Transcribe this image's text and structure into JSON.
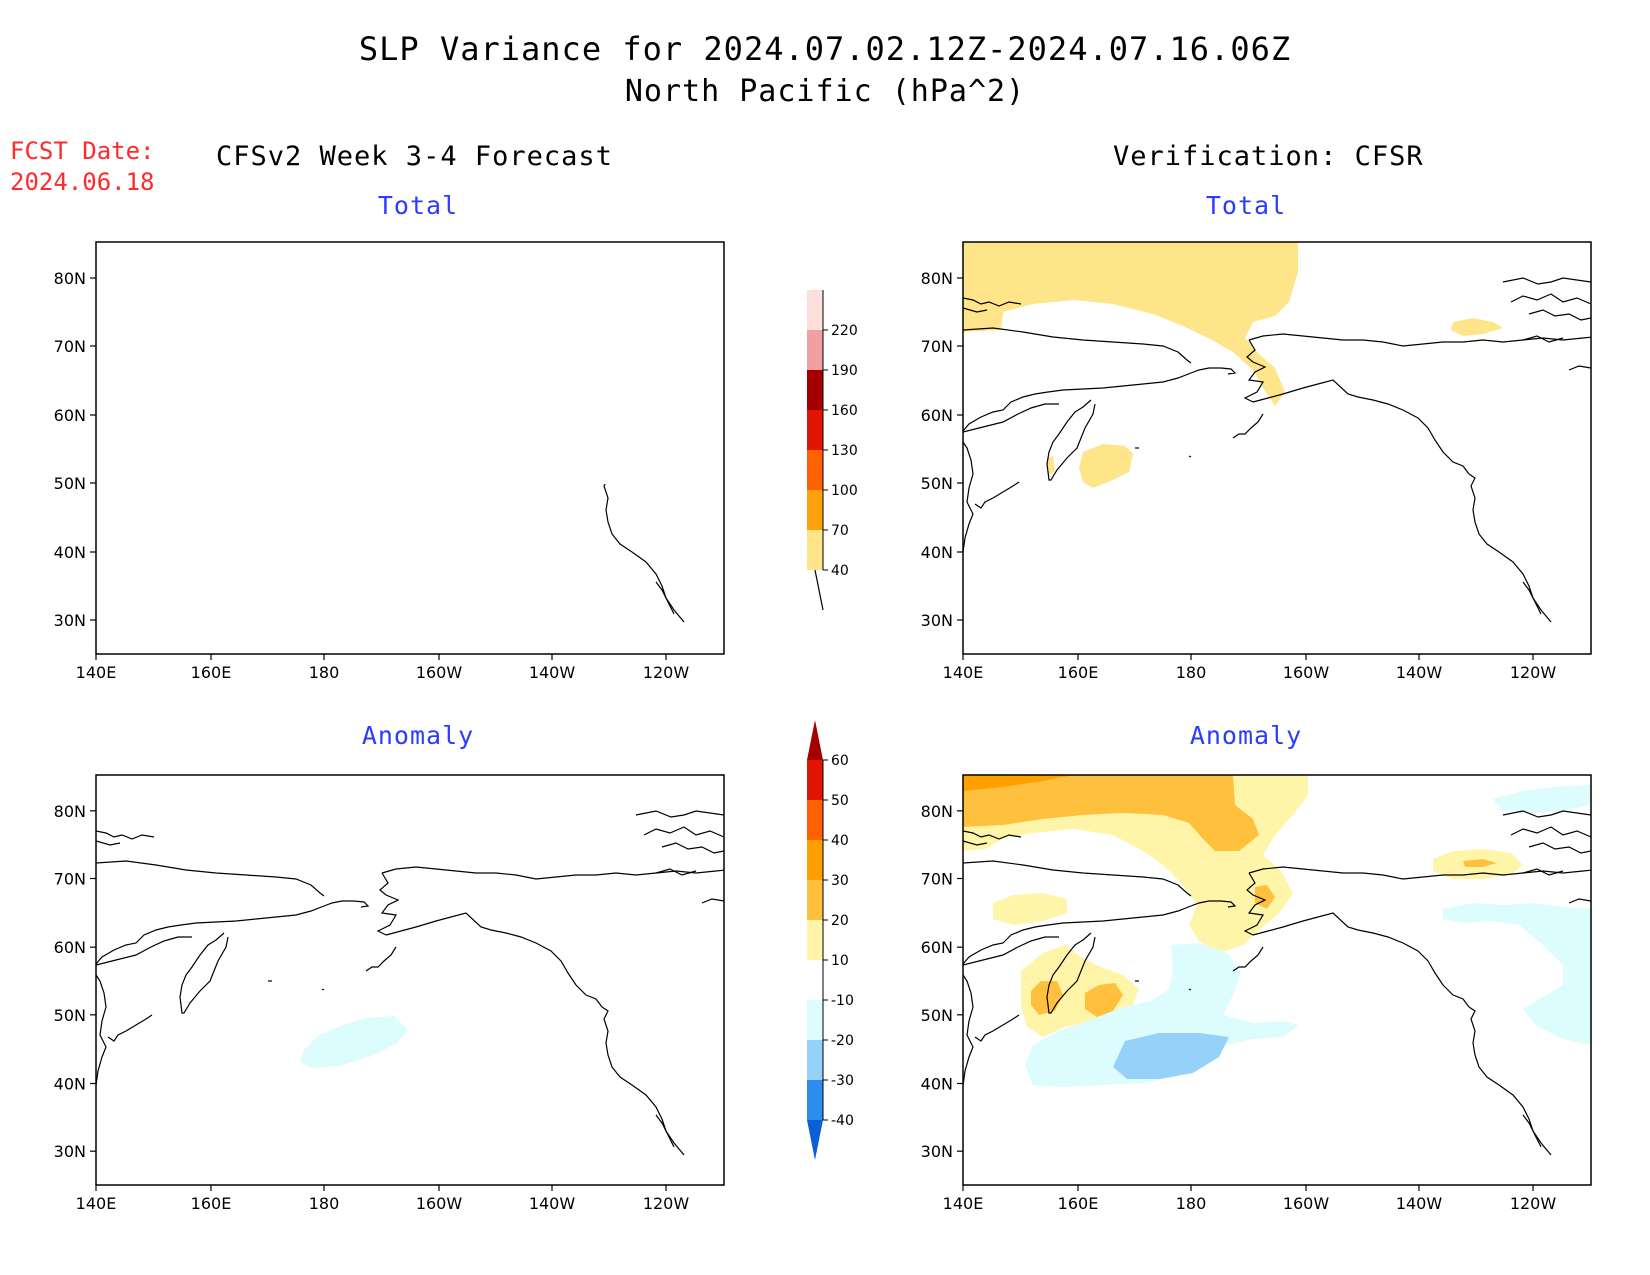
{
  "title": {
    "line1": "SLP Variance for 2024.07.02.12Z-2024.07.16.06Z",
    "line2": "North Pacific (hPa^2)"
  },
  "fcst": {
    "label": "FCST Date:",
    "date": "2024.06.18"
  },
  "headers": {
    "left": "CFSv2 Week 3-4 Forecast",
    "right": "Verification: CFSR"
  },
  "panel_titles": {
    "top_left": "Total",
    "top_right": "Total",
    "bottom_left": "Anomaly",
    "bottom_right": "Anomaly"
  },
  "axes": {
    "lat_labels": [
      "80N",
      "70N",
      "60N",
      "50N",
      "40N",
      "30N"
    ],
    "lon_labels": [
      "140E",
      "160E",
      "180",
      "160W",
      "140W",
      "120W"
    ]
  },
  "colorbars": {
    "total": {
      "labels": [
        "40",
        "70",
        "100",
        "130",
        "160",
        "190",
        "220"
      ],
      "colors": [
        "#fee589",
        "#fea10a",
        "#fd6100",
        "#e11400",
        "#a50000",
        "#f0a0a0",
        "#fde0dc"
      ]
    },
    "anomaly": {
      "labels": [
        "-40",
        "-30",
        "-20",
        "-10",
        "10",
        "20",
        "30",
        "40",
        "50",
        "60"
      ],
      "colors": [
        "#0c5dd8",
        "#2d8cef",
        "#96d1fa",
        "#dcfcfe",
        "#ffffff",
        "#fff5a8",
        "#ffc03d",
        "#ffa000",
        "#ff6000",
        "#e11400",
        "#a50000"
      ]
    }
  },
  "colors": {
    "yellow": "#fee589",
    "orange": "#fea10a",
    "anom_yellow": "#fff5a8",
    "anom_orange": "#ffc03d",
    "anom_lightblue": "#dcfcfe",
    "anom_blue": "#96d1fa",
    "title_blue": "#2a3cff",
    "fcst_red": "#ff2a2a"
  }
}
